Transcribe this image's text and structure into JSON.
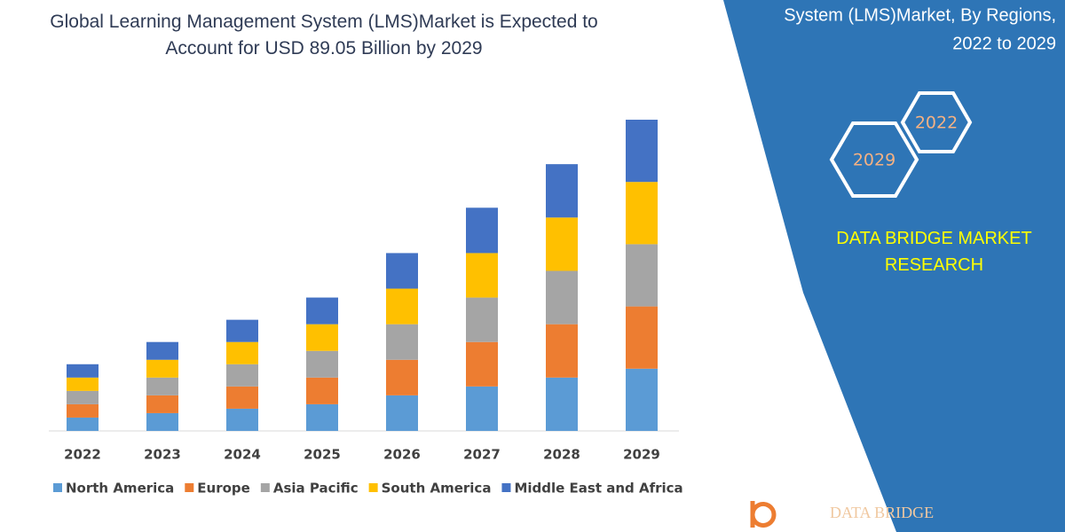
{
  "chart_data": {
    "type": "bar",
    "stacked": true,
    "title": "Global Learning Management System (LMS)Market is Expected to Account for USD 89.05 Billion by 2029",
    "categories": [
      "2022",
      "2023",
      "2024",
      "2025",
      "2026",
      "2027",
      "2028",
      "2029"
    ],
    "series": [
      {
        "name": "North America",
        "color": "#5b9bd5",
        "values": [
          15,
          20,
          25,
          30,
          40,
          50,
          60,
          70
        ]
      },
      {
        "name": "Europe",
        "color": "#ed7d31",
        "values": [
          15,
          20,
          25,
          30,
          40,
          50,
          60,
          70
        ]
      },
      {
        "name": "Asia Pacific",
        "color": "#a5a5a5",
        "values": [
          15,
          20,
          25,
          30,
          40,
          50,
          60,
          70
        ]
      },
      {
        "name": "South America",
        "color": "#ffc000",
        "values": [
          15,
          20,
          25,
          30,
          40,
          50,
          60,
          70
        ]
      },
      {
        "name": "Middle East and Africa",
        "color": "#4472c4",
        "values": [
          15,
          20,
          25,
          30,
          40,
          51,
          60,
          70
        ]
      }
    ]
  },
  "panel": {
    "heading": [
      "System (LMS)Market, By Regions,",
      "2022 to 2029"
    ],
    "hexagons": [
      "2022",
      "2029"
    ],
    "brand": "DATA BRIDGE MARKET RESEARCH",
    "logo": "DATA BRIDGE"
  }
}
